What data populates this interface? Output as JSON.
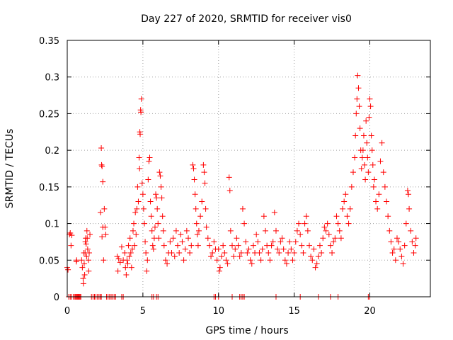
{
  "chart_data": {
    "type": "scatter",
    "title": "Day 227 of 2020, SRMTID for receiver vis0",
    "xlabel": "GPS time / hours",
    "ylabel": "SRMTID / TECUs",
    "xlim": [
      0,
      24
    ],
    "ylim": [
      0,
      0.35
    ],
    "xticks": [
      0,
      5,
      10,
      15,
      20
    ],
    "yticks": [
      0,
      0.05,
      0.1,
      0.15,
      0.2,
      0.25,
      0.3,
      0.35
    ],
    "xtick_labels": [
      "0",
      "5",
      "10",
      "15",
      "20"
    ],
    "ytick_labels": [
      "0",
      "0.05",
      "0.1",
      "0.15",
      "0.2",
      "0.25",
      "0.3",
      "0.35"
    ],
    "grid": true,
    "marker": "+",
    "color": "#ff0000",
    "series": [
      {
        "name": "vis0",
        "points": [
          [
            0.0,
            0.04
          ],
          [
            0.05,
            0.037
          ],
          [
            0.15,
            0.085
          ],
          [
            0.2,
            0.087
          ],
          [
            0.25,
            0.07
          ],
          [
            0.3,
            0.084
          ],
          [
            0.6,
            0.048
          ],
          [
            0.62,
            0.05
          ],
          [
            0.95,
            0.05
          ],
          [
            1.0,
            0.04
          ],
          [
            1.05,
            0.025
          ],
          [
            1.07,
            0.018
          ],
          [
            1.1,
            0.06
          ],
          [
            1.12,
            0.045
          ],
          [
            1.15,
            0.03
          ],
          [
            1.18,
            0.06
          ],
          [
            1.2,
            0.075
          ],
          [
            1.22,
            0.08
          ],
          [
            1.25,
            0.072
          ],
          [
            1.28,
            0.055
          ],
          [
            1.3,
            0.09
          ],
          [
            1.32,
            0.08
          ],
          [
            1.35,
            0.065
          ],
          [
            1.4,
            0.05
          ],
          [
            1.42,
            0.035
          ],
          [
            1.45,
            0.06
          ],
          [
            1.5,
            0.085
          ],
          [
            2.2,
            0.115
          ],
          [
            2.3,
            0.082
          ],
          [
            2.35,
            0.095
          ],
          [
            2.4,
            0.05
          ],
          [
            2.45,
            0.12
          ],
          [
            2.5,
            0.095
          ],
          [
            2.55,
            0.085
          ],
          [
            2.25,
            0.203
          ],
          [
            2.27,
            0.18
          ],
          [
            2.3,
            0.178
          ],
          [
            2.35,
            0.157
          ],
          [
            3.3,
            0.055
          ],
          [
            3.35,
            0.035
          ],
          [
            3.4,
            0.052
          ],
          [
            3.5,
            0.047
          ],
          [
            3.6,
            0.068
          ],
          [
            3.7,
            0.05
          ],
          [
            3.8,
            0.06
          ],
          [
            3.85,
            0.04
          ],
          [
            3.9,
            0.03
          ],
          [
            3.95,
            0.05
          ],
          [
            4.0,
            0.045
          ],
          [
            4.05,
            0.07
          ],
          [
            4.1,
            0.055
          ],
          [
            4.15,
            0.08
          ],
          [
            4.2,
            0.06
          ],
          [
            4.25,
            0.04
          ],
          [
            4.3,
            0.065
          ],
          [
            4.35,
            0.09
          ],
          [
            4.4,
            0.1
          ],
          [
            4.45,
            0.07
          ],
          [
            4.5,
            0.115
          ],
          [
            4.55,
            0.085
          ],
          [
            4.6,
            0.12
          ],
          [
            4.65,
            0.15
          ],
          [
            4.7,
            0.13
          ],
          [
            4.75,
            0.19
          ],
          [
            4.78,
            0.175
          ],
          [
            4.8,
            0.225
          ],
          [
            4.82,
            0.222
          ],
          [
            4.85,
            0.255
          ],
          [
            4.87,
            0.252
          ],
          [
            4.9,
            0.27
          ],
          [
            4.95,
            0.155
          ],
          [
            5.0,
            0.14
          ],
          [
            5.05,
            0.12
          ],
          [
            5.1,
            0.1
          ],
          [
            5.15,
            0.075
          ],
          [
            5.2,
            0.06
          ],
          [
            5.25,
            0.035
          ],
          [
            5.3,
            0.05
          ],
          [
            5.35,
            0.16
          ],
          [
            5.4,
            0.185
          ],
          [
            5.45,
            0.19
          ],
          [
            5.5,
            0.13
          ],
          [
            5.55,
            0.11
          ],
          [
            5.6,
            0.09
          ],
          [
            5.65,
            0.07
          ],
          [
            5.7,
            0.065
          ],
          [
            5.75,
            0.08
          ],
          [
            5.8,
            0.095
          ],
          [
            5.85,
            0.14
          ],
          [
            5.9,
            0.135
          ],
          [
            5.95,
            0.12
          ],
          [
            6.0,
            0.1
          ],
          [
            6.05,
            0.08
          ],
          [
            6.1,
            0.17
          ],
          [
            6.15,
            0.165
          ],
          [
            6.2,
            0.15
          ],
          [
            6.25,
            0.135
          ],
          [
            6.3,
            0.11
          ],
          [
            6.35,
            0.09
          ],
          [
            6.4,
            0.07
          ],
          [
            6.5,
            0.05
          ],
          [
            6.6,
            0.045
          ],
          [
            6.7,
            0.06
          ],
          [
            6.8,
            0.075
          ],
          [
            6.9,
            0.06
          ],
          [
            7.0,
            0.08
          ],
          [
            7.1,
            0.055
          ],
          [
            7.2,
            0.09
          ],
          [
            7.3,
            0.07
          ],
          [
            7.4,
            0.06
          ],
          [
            7.5,
            0.085
          ],
          [
            7.6,
            0.075
          ],
          [
            7.7,
            0.05
          ],
          [
            7.8,
            0.065
          ],
          [
            7.9,
            0.09
          ],
          [
            8.0,
            0.08
          ],
          [
            8.1,
            0.06
          ],
          [
            8.2,
            0.07
          ],
          [
            8.3,
            0.18
          ],
          [
            8.35,
            0.175
          ],
          [
            8.4,
            0.16
          ],
          [
            8.45,
            0.14
          ],
          [
            8.5,
            0.12
          ],
          [
            8.55,
            0.1
          ],
          [
            8.6,
            0.085
          ],
          [
            8.65,
            0.07
          ],
          [
            8.7,
            0.09
          ],
          [
            8.8,
            0.11
          ],
          [
            8.9,
            0.13
          ],
          [
            9.0,
            0.18
          ],
          [
            9.05,
            0.17
          ],
          [
            9.1,
            0.155
          ],
          [
            9.15,
            0.12
          ],
          [
            9.2,
            0.095
          ],
          [
            9.3,
            0.08
          ],
          [
            9.4,
            0.07
          ],
          [
            9.5,
            0.055
          ],
          [
            9.6,
            0.06
          ],
          [
            9.7,
            0.075
          ],
          [
            9.8,
            0.065
          ],
          [
            9.9,
            0.05
          ],
          [
            10.0,
            0.065
          ],
          [
            10.05,
            0.035
          ],
          [
            10.1,
            0.04
          ],
          [
            10.2,
            0.055
          ],
          [
            10.3,
            0.07
          ],
          [
            10.4,
            0.06
          ],
          [
            10.5,
            0.05
          ],
          [
            10.6,
            0.045
          ],
          [
            10.7,
            0.163
          ],
          [
            10.75,
            0.145
          ],
          [
            10.8,
            0.09
          ],
          [
            10.9,
            0.07
          ],
          [
            11.0,
            0.055
          ],
          [
            11.1,
            0.065
          ],
          [
            11.2,
            0.08
          ],
          [
            11.3,
            0.07
          ],
          [
            11.4,
            0.055
          ],
          [
            11.5,
            0.06
          ],
          [
            11.6,
            0.12
          ],
          [
            11.7,
            0.1
          ],
          [
            11.8,
            0.075
          ],
          [
            11.9,
            0.06
          ],
          [
            12.0,
            0.065
          ],
          [
            12.1,
            0.05
          ],
          [
            12.2,
            0.045
          ],
          [
            12.3,
            0.07
          ],
          [
            12.4,
            0.06
          ],
          [
            12.5,
            0.085
          ],
          [
            12.6,
            0.075
          ],
          [
            12.7,
            0.06
          ],
          [
            12.8,
            0.05
          ],
          [
            12.9,
            0.065
          ],
          [
            13.0,
            0.11
          ],
          [
            13.1,
            0.09
          ],
          [
            13.2,
            0.07
          ],
          [
            13.3,
            0.06
          ],
          [
            13.4,
            0.05
          ],
          [
            13.5,
            0.07
          ],
          [
            13.6,
            0.075
          ],
          [
            13.7,
            0.115
          ],
          [
            13.8,
            0.09
          ],
          [
            13.9,
            0.065
          ],
          [
            14.0,
            0.06
          ],
          [
            14.1,
            0.075
          ],
          [
            14.2,
            0.08
          ],
          [
            14.3,
            0.065
          ],
          [
            14.4,
            0.05
          ],
          [
            14.5,
            0.045
          ],
          [
            14.6,
            0.06
          ],
          [
            14.7,
            0.075
          ],
          [
            14.8,
            0.065
          ],
          [
            14.9,
            0.05
          ],
          [
            15.0,
            0.06
          ],
          [
            15.1,
            0.075
          ],
          [
            15.2,
            0.09
          ],
          [
            15.3,
            0.1
          ],
          [
            15.4,
            0.085
          ],
          [
            15.5,
            0.07
          ],
          [
            15.6,
            0.06
          ],
          [
            15.7,
            0.1
          ],
          [
            15.8,
            0.11
          ],
          [
            15.9,
            0.09
          ],
          [
            16.0,
            0.07
          ],
          [
            16.1,
            0.055
          ],
          [
            16.2,
            0.05
          ],
          [
            16.3,
            0.065
          ],
          [
            16.4,
            0.04
          ],
          [
            16.5,
            0.045
          ],
          [
            16.6,
            0.055
          ],
          [
            16.7,
            0.07
          ],
          [
            16.8,
            0.06
          ],
          [
            16.9,
            0.08
          ],
          [
            17.0,
            0.095
          ],
          [
            17.1,
            0.09
          ],
          [
            17.2,
            0.1
          ],
          [
            17.3,
            0.085
          ],
          [
            17.4,
            0.07
          ],
          [
            17.5,
            0.06
          ],
          [
            17.6,
            0.075
          ],
          [
            17.7,
            0.08
          ],
          [
            17.8,
            0.11
          ],
          [
            17.9,
            0.1
          ],
          [
            18.0,
            0.09
          ],
          [
            18.1,
            0.08
          ],
          [
            18.2,
            0.12
          ],
          [
            18.3,
            0.13
          ],
          [
            18.4,
            0.14
          ],
          [
            18.5,
            0.11
          ],
          [
            18.6,
            0.1
          ],
          [
            18.7,
            0.12
          ],
          [
            18.8,
            0.15
          ],
          [
            18.9,
            0.17
          ],
          [
            19.0,
            0.19
          ],
          [
            19.05,
            0.22
          ],
          [
            19.1,
            0.25
          ],
          [
            19.15,
            0.27
          ],
          [
            19.2,
            0.302
          ],
          [
            19.25,
            0.285
          ],
          [
            19.3,
            0.26
          ],
          [
            19.35,
            0.23
          ],
          [
            19.4,
            0.2
          ],
          [
            19.45,
            0.175
          ],
          [
            19.5,
            0.19
          ],
          [
            19.55,
            0.2
          ],
          [
            19.6,
            0.22
          ],
          [
            19.65,
            0.18
          ],
          [
            19.7,
            0.16
          ],
          [
            19.75,
            0.24
          ],
          [
            19.8,
            0.21
          ],
          [
            19.85,
            0.19
          ],
          [
            19.9,
            0.17
          ],
          [
            19.95,
            0.245
          ],
          [
            20.0,
            0.27
          ],
          [
            20.05,
            0.26
          ],
          [
            20.1,
            0.22
          ],
          [
            20.15,
            0.2
          ],
          [
            20.2,
            0.18
          ],
          [
            20.25,
            0.15
          ],
          [
            20.3,
            0.16
          ],
          [
            20.4,
            0.13
          ],
          [
            20.5,
            0.12
          ],
          [
            20.6,
            0.14
          ],
          [
            20.7,
            0.185
          ],
          [
            20.8,
            0.21
          ],
          [
            20.9,
            0.17
          ],
          [
            21.0,
            0.15
          ],
          [
            21.1,
            0.13
          ],
          [
            21.2,
            0.11
          ],
          [
            21.3,
            0.09
          ],
          [
            21.4,
            0.075
          ],
          [
            21.5,
            0.06
          ],
          [
            21.6,
            0.065
          ],
          [
            21.7,
            0.05
          ],
          [
            21.8,
            0.08
          ],
          [
            21.9,
            0.075
          ],
          [
            22.0,
            0.065
          ],
          [
            22.1,
            0.055
          ],
          [
            22.2,
            0.045
          ],
          [
            22.3,
            0.07
          ],
          [
            22.4,
            0.1
          ],
          [
            22.5,
            0.145
          ],
          [
            22.55,
            0.14
          ],
          [
            22.6,
            0.12
          ],
          [
            22.7,
            0.09
          ],
          [
            22.8,
            0.075
          ],
          [
            22.9,
            0.06
          ],
          [
            23.0,
            0.07
          ],
          [
            23.05,
            0.08
          ]
        ],
        "zeros": [
          0.1,
          0.2,
          0.3,
          0.4,
          0.5,
          0.55,
          0.6,
          0.65,
          0.7,
          0.75,
          0.8,
          0.85,
          0.9,
          1.6,
          1.7,
          1.8,
          1.9,
          2.0,
          2.1,
          2.2,
          2.25,
          2.6,
          2.7,
          2.8,
          2.9,
          3.0,
          3.1,
          3.2,
          3.6,
          3.7,
          5.6,
          5.7,
          5.9,
          6.0,
          9.7,
          9.8,
          10.0,
          10.9,
          11.4,
          11.5,
          11.6,
          11.7,
          13.8,
          15.4,
          16.6,
          17.4,
          17.9,
          19.9,
          20.0
        ]
      }
    ]
  }
}
